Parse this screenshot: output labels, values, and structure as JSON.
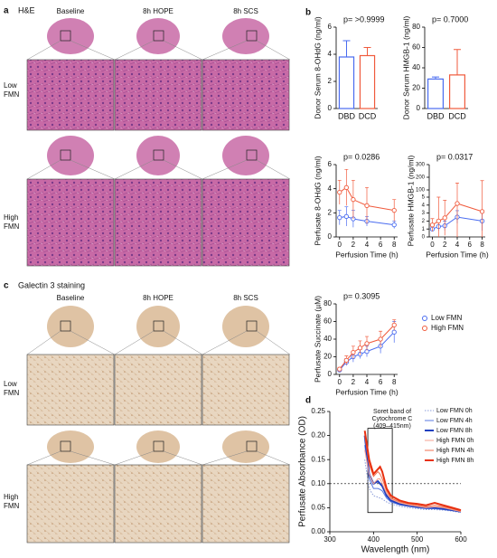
{
  "figure": {
    "panel_a": {
      "label": "a",
      "title": "H&E",
      "columns": [
        "Baseline",
        "8h HOPE",
        "8h SCS"
      ],
      "rows": [
        "Low FMN",
        "High FMN"
      ]
    },
    "panel_b_label": "b",
    "panel_c": {
      "label": "c",
      "title": "Galectin 3 staining",
      "columns": [
        "Baseline",
        "8h HOPE",
        "8h SCS"
      ],
      "rows": [
        "Low FMN",
        "High FMN"
      ]
    },
    "panel_d_label": "d"
  },
  "chart_data": [
    {
      "type": "bar",
      "y_label": "Donor Serum 8-OHdG (ng/ml)",
      "annotation": "p= >0.9999",
      "categories": [
        "DBD",
        "DCD"
      ],
      "values": [
        3.8,
        3.9
      ],
      "errors": [
        1.2,
        0.6
      ],
      "colors": [
        "#4a6cf0",
        "#f05a3c"
      ],
      "ylim": [
        0,
        6
      ],
      "yticks": [
        0,
        2,
        4,
        6
      ]
    },
    {
      "type": "bar",
      "y_label": "Donor Serum HMGB-1 (ng/ml)",
      "annotation": "p= 0.7000",
      "categories": [
        "DBD",
        "DCD"
      ],
      "values": [
        29,
        33
      ],
      "errors": [
        2,
        25
      ],
      "colors": [
        "#4a6cf0",
        "#f05a3c"
      ],
      "ylim": [
        0,
        80
      ],
      "yticks": [
        0,
        20,
        40,
        60,
        80
      ]
    },
    {
      "type": "line",
      "y_label": "Perfusate 8-OHdG (ng/ml)",
      "x_label": "Perfusion Time (h)",
      "annotation": "p= 0.0286",
      "markers": true,
      "x": [
        0,
        1,
        2,
        4,
        8
      ],
      "xlim": [
        -0.5,
        8.5
      ],
      "xticks": [
        0,
        2,
        4,
        6,
        8
      ],
      "ylim": [
        0,
        6
      ],
      "yticks": [
        0,
        2,
        4,
        6
      ],
      "series": [
        {
          "name": "Low FMN",
          "color": "#4a6cf0",
          "values": [
            1.6,
            1.7,
            1.5,
            1.3,
            1.0
          ],
          "errors": [
            0.6,
            0.8,
            0.7,
            0.4,
            0.3
          ]
        },
        {
          "name": "High FMN",
          "color": "#f05a3c",
          "values": [
            3.7,
            4.1,
            3.1,
            2.6,
            2.2
          ],
          "errors": [
            1.0,
            1.5,
            1.6,
            1.5,
            0.9
          ]
        }
      ]
    },
    {
      "type": "line",
      "y_label": "Perfusate HMGB-1 (ng/ml)",
      "x_label": "Perfusion Time (h)",
      "annotation": "p= 0.0317",
      "markers": true,
      "x": [
        0,
        1,
        2,
        4,
        8
      ],
      "xlim": [
        -0.5,
        8.5
      ],
      "xticks": [
        0,
        2,
        4,
        6,
        8
      ],
      "ylim": [
        0,
        300
      ],
      "axis_break": [
        5,
        100
      ],
      "yticks": [
        0,
        1,
        2,
        3,
        4,
        5,
        100,
        200,
        300
      ],
      "series": [
        {
          "name": "Low FMN",
          "color": "#4a6cf0",
          "values": [
            1.0,
            1.3,
            1.4,
            2.5,
            2.0
          ],
          "errors": [
            0.3,
            0.5,
            0.6,
            0.8,
            1.2
          ]
        },
        {
          "name": "High FMN",
          "color": "#f05a3c",
          "values": [
            1.5,
            2.0,
            2.4,
            4.2,
            3.2
          ],
          "errors": [
            0.8,
            3,
            2.2,
            150,
            170
          ]
        }
      ]
    },
    {
      "type": "line",
      "y_label": "Perfusate Succinate (µM)",
      "x_label": "Perfusion Time (h)",
      "annotation": "p= 0.3095",
      "markers": true,
      "legend": "right",
      "x": [
        0,
        1,
        2,
        3,
        4,
        6,
        8
      ],
      "xlim": [
        -0.5,
        8.5
      ],
      "xticks": [
        0,
        2,
        4,
        6,
        8
      ],
      "ylim": [
        0,
        80
      ],
      "yticks": [
        0,
        20,
        40,
        60,
        80
      ],
      "series": [
        {
          "name": "Low FMN",
          "color": "#4a6cf0",
          "values": [
            5,
            14,
            20,
            23,
            26,
            32,
            48
          ],
          "errors": [
            2,
            4,
            6,
            5,
            6,
            8,
            12
          ]
        },
        {
          "name": "High FMN",
          "color": "#f05a3c",
          "values": [
            6,
            16,
            25,
            30,
            35,
            40,
            56
          ],
          "errors": [
            2,
            5,
            7,
            8,
            8,
            9,
            6
          ]
        }
      ]
    },
    {
      "type": "line",
      "y_label": "Perfusate Absorbance (OD)",
      "x_label": "Wavelength (nm)",
      "annotation": "Soret band of Cytochrome C (409–415nm)",
      "legend": "top-right",
      "reference_line": 0.1,
      "x": [
        380,
        390,
        400,
        410,
        415,
        420,
        430,
        440,
        460,
        480,
        500,
        520,
        540,
        560,
        580,
        600
      ],
      "xlim": [
        300,
        600
      ],
      "xticks": [
        300,
        400,
        500,
        600
      ],
      "ylim": [
        0,
        0.25
      ],
      "yticks": [
        {
          "value": 0,
          "label": "0.00"
        },
        {
          "value": 0.05,
          "label": "0.05"
        },
        {
          "value": 0.1,
          "label": "0.10"
        },
        {
          "value": 0.15,
          "label": "0.15"
        },
        {
          "value": 0.2,
          "label": "0.20"
        },
        {
          "value": 0.25,
          "label": "0.25"
        }
      ],
      "series": [
        {
          "name": "Low FMN 0h",
          "color": "#8a9bd8",
          "style": "dotted",
          "values": [
            0.15,
            0.09,
            0.075,
            0.072,
            0.07,
            0.068,
            0.062,
            0.058,
            0.053,
            0.05,
            0.048,
            0.046,
            0.046,
            0.045,
            0.043,
            0.04
          ]
        },
        {
          "name": "Low FMN 4h",
          "color": "#5a7ae0",
          "style": "solid",
          "values": [
            0.18,
            0.11,
            0.09,
            0.09,
            0.088,
            0.085,
            0.07,
            0.062,
            0.056,
            0.053,
            0.05,
            0.048,
            0.048,
            0.046,
            0.044,
            0.041
          ]
        },
        {
          "name": "Low FMN 8h",
          "color": "#2040c0",
          "style": "bold",
          "values": [
            0.2,
            0.12,
            0.1,
            0.105,
            0.1,
            0.095,
            0.075,
            0.065,
            0.058,
            0.054,
            0.052,
            0.05,
            0.05,
            0.048,
            0.045,
            0.042
          ]
        },
        {
          "name": "High FMN 0h",
          "color": "#f4a090",
          "style": "solid",
          "values": [
            0.17,
            0.12,
            0.1,
            0.11,
            0.11,
            0.1,
            0.08,
            0.068,
            0.06,
            0.056,
            0.053,
            0.05,
            0.052,
            0.05,
            0.046,
            0.042
          ]
        },
        {
          "name": "High FMN 4h",
          "color": "#f07050",
          "style": "solid",
          "values": [
            0.2,
            0.14,
            0.115,
            0.125,
            0.12,
            0.11,
            0.085,
            0.07,
            0.062,
            0.058,
            0.055,
            0.052,
            0.055,
            0.052,
            0.048,
            0.043
          ]
        },
        {
          "name": "High FMN 8h",
          "color": "#e83010",
          "style": "bold",
          "values": [
            0.21,
            0.15,
            0.12,
            0.13,
            0.135,
            0.125,
            0.09,
            0.075,
            0.065,
            0.06,
            0.058,
            0.055,
            0.06,
            0.055,
            0.05,
            0.045
          ]
        }
      ]
    }
  ]
}
